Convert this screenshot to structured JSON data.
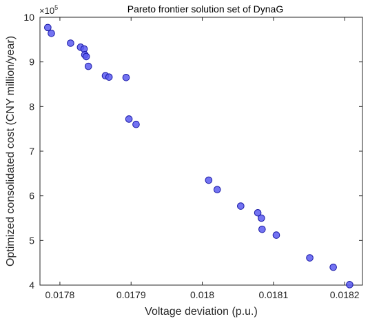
{
  "chart_data": {
    "type": "scatter",
    "title": "Pareto frontier solution set of DynaG",
    "xlabel": "Voltage deviation (p.u.)",
    "ylabel": "Optimized consolidated cost (CNY million/year)",
    "y_exponent_base": "×10",
    "y_exponent_power": "5",
    "xlim": [
      0.017772,
      0.018225
    ],
    "ylim": [
      4,
      10
    ],
    "x_ticks": [
      0.0178,
      0.0179,
      0.018,
      0.0181,
      0.0182
    ],
    "x_tick_labels": [
      "0.0178",
      "0.0179",
      "0.018",
      "0.0181",
      "0.0182"
    ],
    "y_ticks": [
      4,
      5,
      6,
      7,
      8,
      9,
      10
    ],
    "y_tick_labels": [
      "4",
      "5",
      "6",
      "7",
      "8",
      "9",
      "10"
    ],
    "grid": false,
    "marker_fill": "#5b5bf0",
    "marker_edge": "#1a1aa6",
    "points": [
      {
        "x": 0.017783,
        "y": 9.77
      },
      {
        "x": 0.017788,
        "y": 9.64
      },
      {
        "x": 0.017815,
        "y": 9.42
      },
      {
        "x": 0.017829,
        "y": 9.33
      },
      {
        "x": 0.017834,
        "y": 9.29
      },
      {
        "x": 0.017835,
        "y": 9.16
      },
      {
        "x": 0.017837,
        "y": 9.12
      },
      {
        "x": 0.01784,
        "y": 8.9
      },
      {
        "x": 0.017864,
        "y": 8.69
      },
      {
        "x": 0.017869,
        "y": 8.66
      },
      {
        "x": 0.017893,
        "y": 8.65
      },
      {
        "x": 0.017897,
        "y": 7.72
      },
      {
        "x": 0.017907,
        "y": 7.6
      },
      {
        "x": 0.018009,
        "y": 6.35
      },
      {
        "x": 0.018021,
        "y": 6.14
      },
      {
        "x": 0.018054,
        "y": 5.77
      },
      {
        "x": 0.018078,
        "y": 5.62
      },
      {
        "x": 0.018083,
        "y": 5.5
      },
      {
        "x": 0.018084,
        "y": 5.25
      },
      {
        "x": 0.018104,
        "y": 5.12
      },
      {
        "x": 0.018151,
        "y": 4.61
      },
      {
        "x": 0.018184,
        "y": 4.4
      },
      {
        "x": 0.018207,
        "y": 4.01
      }
    ]
  }
}
